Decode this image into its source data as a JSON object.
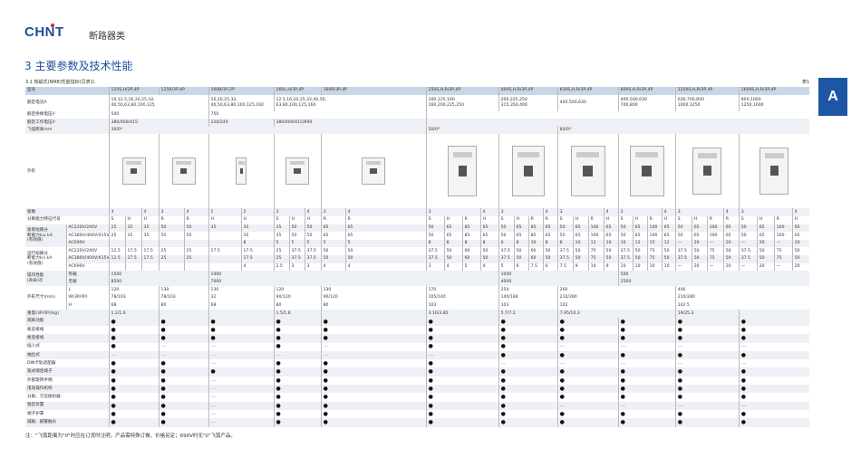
{
  "header": {
    "logo": "CHNT",
    "category": "断路器类",
    "section_title": "3 主要参数及技术性能",
    "subsection": "3.1 热磁式(NM8)性能指标(见表1)",
    "table_no": "表1",
    "side_tab": "A"
  },
  "colors": {
    "brand": "#1c4f9c",
    "header_row": "#c9d6e7",
    "stripe": "#edf0f4",
    "side_tab": "#1c56a5"
  },
  "group_spans": [
    3,
    2,
    2,
    3,
    2,
    4,
    4,
    4,
    4,
    4,
    4
  ],
  "rows": [
    {
      "bg": "b",
      "cells": [
        [
          "型号",
          2
        ],
        [
          "125S,H/3P,4P",
          3
        ],
        [
          "125R/3P,4P",
          2
        ],
        [
          "160B/1P,2P",
          2
        ],
        [
          "160L,H/3P,4P",
          3
        ],
        [
          "160R/3P,4P",
          2
        ],
        [
          "250S,H,R/3P,4P",
          4
        ],
        [
          "400S,H,R/3P,4P",
          4
        ],
        [
          "630S,H,R/3P,4P",
          4
        ],
        [
          "800S,H,R/3P,4P",
          4
        ],
        [
          "1250S,H,R/3P,4P",
          4
        ],
        [
          "1600S,H,R/3P,4P",
          4
        ]
      ]
    },
    {
      "bg": "w",
      "cls": "cur",
      "cells": [
        [
          "额定电流A",
          2
        ],
        [
          "10,12.5,16,20,25,32,\n40,50,63,80,100,125",
          5
        ],
        [
          "16,20,25,32,\n40,50,63,80,100,125,160",
          2
        ],
        [
          "12.5,16,20,25,32,40,50,\n63,80,100,125,160",
          5
        ],
        [
          "100,125,160\n160,200,225,250",
          4
        ],
        [
          "200,225,250\n315,350,400",
          4
        ],
        [
          "400,500,630",
          4
        ],
        [
          "400,500,630\n700,800",
          4
        ],
        [
          "630,700,800\n1000,1250",
          4
        ],
        [
          "800,1000\n1250,1600",
          4
        ]
      ]
    },
    {
      "bg": "w",
      "cells": [
        [
          "额定绝缘电压V",
          2
        ],
        [
          "500",
          5
        ],
        [
          "750",
          7
        ],
        [
          "",
          24
        ]
      ]
    },
    {
      "bg": "g",
      "cells": [
        [
          "额定工作电压V",
          2
        ],
        [
          "380/400/415",
          5
        ],
        [
          "220/240",
          2
        ],
        [
          "380/400/415/690",
          5
        ],
        [
          "",
          24
        ]
      ]
    },
    {
      "bg": "g",
      "cells": [
        [
          "飞弧距离mm",
          2
        ],
        [
          "30/0*",
          12
        ],
        [
          "50/0*",
          8
        ],
        [
          "80/0*",
          16
        ]
      ]
    },
    {
      "bg": "w",
      "cls": "img",
      "image_row": true,
      "cells": [
        [
          "外形",
          2
        ]
      ]
    },
    {
      "bg": "g",
      "cells": [
        [
          "极数",
          2
        ],
        [
          "3",
          2
        ],
        [
          "4"
        ],
        [
          "3"
        ],
        [
          "4"
        ],
        [
          "1"
        ],
        [
          "2"
        ],
        [
          "3",
          2
        ],
        [
          "4"
        ],
        [
          "3"
        ],
        [
          "4"
        ],
        [
          "3",
          3
        ],
        [
          "4"
        ],
        [
          "3",
          3
        ],
        [
          "4"
        ],
        [
          "3",
          3
        ],
        [
          "4"
        ],
        [
          "3",
          3
        ],
        [
          "4"
        ],
        [
          "3",
          3
        ],
        [
          "4"
        ],
        [
          "3",
          3
        ],
        [
          "4"
        ]
      ]
    },
    {
      "bg": "w",
      "cells": [
        [
          "分断能力特征代号",
          2
        ],
        [
          "S"
        ],
        [
          "H"
        ],
        [
          "H"
        ],
        [
          "R"
        ],
        [
          "R"
        ],
        [
          "H"
        ],
        [
          "H"
        ],
        [
          "S"
        ],
        [
          "H"
        ],
        [
          "H"
        ],
        [
          "R"
        ],
        [
          "R"
        ],
        [
          "S"
        ],
        [
          "H"
        ],
        [
          "R"
        ],
        [
          "H"
        ],
        [
          "S"
        ],
        [
          "H"
        ],
        [
          "R"
        ],
        [
          "R"
        ],
        [
          "S"
        ],
        [
          "H"
        ],
        [
          "R"
        ],
        [
          "H"
        ],
        [
          "S"
        ],
        [
          "H"
        ],
        [
          "R"
        ],
        [
          "H"
        ],
        [
          "S"
        ],
        [
          "H"
        ],
        [
          "R"
        ],
        [
          "R"
        ],
        [
          "S"
        ],
        [
          "H"
        ],
        [
          "R"
        ],
        [
          "H"
        ]
      ]
    },
    {
      "bg": "g",
      "cells": [
        [
          "极限短路分\n断能力Icu kA\n(有效值)",
          1,
          3
        ],
        [
          "AC220V/240V"
        ],
        [
          "25"
        ],
        [
          "35"
        ],
        [
          "35"
        ],
        [
          "50"
        ],
        [
          "50"
        ],
        [
          "35"
        ],
        [
          "35"
        ],
        [
          "35"
        ],
        [
          "50"
        ],
        [
          "50"
        ],
        [
          "65"
        ],
        [
          "65"
        ],
        [
          "50"
        ],
        [
          "65"
        ],
        [
          "85"
        ],
        [
          "65"
        ],
        [
          "50"
        ],
        [
          "65"
        ],
        [
          "85"
        ],
        [
          "65"
        ],
        [
          "50"
        ],
        [
          "65"
        ],
        [
          "100"
        ],
        [
          "65"
        ],
        [
          "50"
        ],
        [
          "65"
        ],
        [
          "100"
        ],
        [
          "65"
        ],
        [
          "50"
        ],
        [
          "65"
        ],
        [
          "100"
        ],
        [
          "65"
        ],
        [
          "50"
        ],
        [
          "65"
        ],
        [
          "100"
        ],
        [
          "65"
        ]
      ]
    },
    {
      "bg": "w",
      "cells": [
        [
          "AC380V/400V/415V"
        ],
        [
          "25"
        ],
        [
          "35"
        ],
        [
          "35"
        ],
        [
          "50"
        ],
        [
          "50"
        ],
        [
          ""
        ],
        [
          "35"
        ],
        [
          "35"
        ],
        [
          "50"
        ],
        [
          "50"
        ],
        [
          "65"
        ],
        [
          "65"
        ],
        [
          "50"
        ],
        [
          "65"
        ],
        [
          "85"
        ],
        [
          "65"
        ],
        [
          "50"
        ],
        [
          "65"
        ],
        [
          "85"
        ],
        [
          "65"
        ],
        [
          "50"
        ],
        [
          "65"
        ],
        [
          "100"
        ],
        [
          "65"
        ],
        [
          "50"
        ],
        [
          "65"
        ],
        [
          "100"
        ],
        [
          "65"
        ],
        [
          "50"
        ],
        [
          "65"
        ],
        [
          "100"
        ],
        [
          "65"
        ],
        [
          "50"
        ],
        [
          "65"
        ],
        [
          "100"
        ],
        [
          "65"
        ]
      ]
    },
    {
      "bg": "g",
      "cells": [
        [
          "AC690V"
        ],
        [
          ""
        ],
        [
          ""
        ],
        [
          ""
        ],
        [
          ""
        ],
        [
          ""
        ],
        [
          ""
        ],
        [
          "8"
        ],
        [
          "5"
        ],
        [
          "5"
        ],
        [
          "5"
        ],
        [
          "5"
        ],
        [
          "5"
        ],
        [
          "8"
        ],
        [
          "8"
        ],
        [
          "8"
        ],
        [
          "8"
        ],
        [
          "6"
        ],
        [
          "8"
        ],
        [
          "10"
        ],
        [
          "8"
        ],
        [
          "8"
        ],
        [
          "10"
        ],
        [
          "12"
        ],
        [
          "10"
        ],
        [
          "10"
        ],
        [
          "12"
        ],
        [
          "15"
        ],
        [
          "12"
        ],
        [
          "—"
        ],
        [
          "20"
        ],
        [
          "—"
        ],
        [
          "20"
        ],
        [
          "—"
        ],
        [
          "20"
        ],
        [
          "—"
        ],
        [
          "20"
        ]
      ]
    },
    {
      "bg": "w",
      "cells": [
        [
          "运行短路分\n断能力Ics kA\n(有效值)",
          1,
          3
        ],
        [
          "AC220V/240V"
        ],
        [
          "12.5"
        ],
        [
          "17.5"
        ],
        [
          "17.5"
        ],
        [
          "25"
        ],
        [
          "25"
        ],
        [
          "17.5"
        ],
        [
          "17.5"
        ],
        [
          "25"
        ],
        [
          "37.5"
        ],
        [
          "37.5"
        ],
        [
          "50"
        ],
        [
          "50"
        ],
        [
          "37.5"
        ],
        [
          "50"
        ],
        [
          "60"
        ],
        [
          "50"
        ],
        [
          "37.5"
        ],
        [
          "50"
        ],
        [
          "60"
        ],
        [
          "50"
        ],
        [
          "37.5"
        ],
        [
          "50"
        ],
        [
          "75"
        ],
        [
          "50"
        ],
        [
          "37.5"
        ],
        [
          "50"
        ],
        [
          "75"
        ],
        [
          "50"
        ],
        [
          "37.5"
        ],
        [
          "50"
        ],
        [
          "75"
        ],
        [
          "50"
        ],
        [
          "37.5"
        ],
        [
          "50"
        ],
        [
          "75"
        ],
        [
          "50"
        ]
      ]
    },
    {
      "bg": "g",
      "cells": [
        [
          "AC380V/400V/415V"
        ],
        [
          "12.5"
        ],
        [
          "17.5"
        ],
        [
          "17.5"
        ],
        [
          "25"
        ],
        [
          "25"
        ],
        [
          ""
        ],
        [
          "17.5"
        ],
        [
          "25"
        ],
        [
          "37.5"
        ],
        [
          "37.5"
        ],
        [
          "50"
        ],
        [
          "50"
        ],
        [
          "37.5"
        ],
        [
          "50"
        ],
        [
          "60"
        ],
        [
          "50"
        ],
        [
          "37.5"
        ],
        [
          "50"
        ],
        [
          "60"
        ],
        [
          "50"
        ],
        [
          "37.5"
        ],
        [
          "50"
        ],
        [
          "75"
        ],
        [
          "50"
        ],
        [
          "37.5"
        ],
        [
          "50"
        ],
        [
          "75"
        ],
        [
          "50"
        ],
        [
          "37.5"
        ],
        [
          "50"
        ],
        [
          "75"
        ],
        [
          "50"
        ],
        [
          "37.5"
        ],
        [
          "50"
        ],
        [
          "75"
        ],
        [
          "50"
        ]
      ]
    },
    {
      "bg": "w",
      "cells": [
        [
          "AC690V"
        ],
        [
          ""
        ],
        [
          ""
        ],
        [
          ""
        ],
        [
          ""
        ],
        [
          ""
        ],
        [
          ""
        ],
        [
          "4"
        ],
        [
          "2.5"
        ],
        [
          "3"
        ],
        [
          "3"
        ],
        [
          "4"
        ],
        [
          "4"
        ],
        [
          "3"
        ],
        [
          "4"
        ],
        [
          "5"
        ],
        [
          "4"
        ],
        [
          "5"
        ],
        [
          "6"
        ],
        [
          "7.5"
        ],
        [
          "6"
        ],
        [
          "7.5"
        ],
        [
          "9"
        ],
        [
          "10"
        ],
        [
          "9"
        ],
        [
          "10"
        ],
        [
          "10"
        ],
        [
          "10"
        ],
        [
          "10"
        ],
        [
          "—"
        ],
        [
          "20"
        ],
        [
          "—"
        ],
        [
          "20"
        ],
        [
          "—"
        ],
        [
          "20"
        ],
        [
          "—"
        ],
        [
          "20"
        ]
      ]
    },
    {
      "bg": "g",
      "cells": [
        [
          "操作性能\n(寿命)次",
          1,
          2
        ],
        [
          "有载"
        ],
        [
          "1500",
          5
        ],
        [
          "1000",
          11
        ],
        [
          "1000",
          8
        ],
        [
          "500",
          12
        ]
      ]
    },
    {
      "bg": "g",
      "cells": [
        [
          "无载"
        ],
        [
          "8500",
          5
        ],
        [
          "7000",
          11
        ],
        [
          "4000",
          8
        ],
        [
          "2500",
          12
        ]
      ]
    },
    {
      "bg": "w",
      "cells": [
        [
          "外形尺寸(mm)",
          1,
          3
        ],
        [
          "L"
        ],
        [
          "120",
          3
        ],
        [
          "130",
          2
        ],
        [
          "130",
          2
        ],
        [
          "120",
          3
        ],
        [
          "130",
          2
        ],
        [
          "170",
          4
        ],
        [
          "254",
          4
        ],
        [
          "260",
          8
        ],
        [
          "406",
          8
        ]
      ]
    },
    {
      "bg": "w",
      "cells": [
        [
          "W(3P/4P)"
        ],
        [
          "78/103",
          3
        ],
        [
          "78/103",
          2
        ],
        [
          "32",
          2
        ],
        [
          "90/120",
          3
        ],
        [
          "90/120",
          2
        ],
        [
          "105/140",
          4
        ],
        [
          "140/184",
          4
        ],
        [
          "210/280",
          8
        ],
        [
          "210/280",
          8
        ]
      ]
    },
    {
      "bg": "w",
      "cells": [
        [
          "H"
        ],
        [
          "68",
          3
        ],
        [
          "80",
          2
        ],
        [
          "68",
          2
        ],
        [
          "80",
          3
        ],
        [
          "80",
          2
        ],
        [
          "103",
          4
        ],
        [
          "103",
          4
        ],
        [
          "102",
          8
        ],
        [
          "142.5",
          8
        ]
      ]
    },
    {
      "bg": "g",
      "cells": [
        [
          "重量(3P/4P)(kg)",
          2
        ],
        [
          "1.2/1.6",
          3
        ],
        [
          "",
          2
        ],
        [
          "",
          2
        ],
        [
          "1.5/1.8",
          3
        ],
        [
          "",
          2
        ],
        [
          "3.10/3.85",
          4
        ],
        [
          "5.7/7.2",
          4
        ],
        [
          "7.95/10.3",
          8
        ],
        [
          "19/25.3",
          4
        ],
        [
          "",
          4
        ]
      ]
    }
  ],
  "features": [
    {
      "label": "隔离功能",
      "v": [
        "●",
        "●",
        "●",
        "●",
        "●",
        "●",
        "●",
        "●",
        "●",
        "●",
        "●"
      ]
    },
    {
      "label": "板前接线",
      "v": [
        "●",
        "●",
        "●",
        "●",
        "●",
        "●",
        "●",
        "●",
        "●",
        "●",
        "●"
      ]
    },
    {
      "label": "板后接线",
      "v": [
        "●",
        "●",
        "●",
        "●",
        "●",
        "●",
        "●",
        "●",
        "●",
        "●",
        "●"
      ]
    },
    {
      "label": "插入式",
      "v": [
        "●",
        "—",
        "—",
        "●",
        "—",
        "●",
        "●",
        "—",
        "—",
        "—",
        "—"
      ]
    },
    {
      "label": "抽出式",
      "v": [
        "—",
        "—",
        "—",
        "—",
        "—",
        "—",
        "●",
        "●",
        "●",
        "●",
        "●"
      ]
    },
    {
      "label": "DIN卡轨适配器",
      "v": [
        "●",
        "●",
        "—",
        "●",
        "●",
        "●",
        "—",
        "—",
        "—",
        "—",
        "—"
      ]
    },
    {
      "label": "笼式端连端子",
      "v": [
        "●",
        "●",
        "●",
        "●",
        "●",
        "●",
        "●",
        "●",
        "●",
        "●",
        "●"
      ]
    },
    {
      "label": "外部旋转手柄",
      "v": [
        "●",
        "●",
        "—",
        "●",
        "●",
        "●",
        "●",
        "●",
        "●",
        "●",
        "●"
      ]
    },
    {
      "label": "电动操作机构",
      "v": [
        "●",
        "●",
        "—",
        "●",
        "●",
        "●",
        "●",
        "●",
        "●",
        "●",
        "●"
      ]
    },
    {
      "label": "分励、欠压脱扣器",
      "v": [
        "●",
        "●",
        "—",
        "●",
        "●",
        "●",
        "●",
        "●",
        "●",
        "●",
        "●"
      ]
    },
    {
      "label": "锁定装置",
      "v": [
        "●",
        "●",
        "—",
        "●",
        "●",
        "●",
        "●",
        "—",
        "—",
        "—",
        "—"
      ]
    },
    {
      "label": "端子护罩",
      "v": [
        "●",
        "●",
        "—",
        "●",
        "●",
        "●",
        "●",
        "●",
        "●",
        "●",
        "●"
      ]
    },
    {
      "label": "辅助、报警触头",
      "v": [
        "●",
        "●",
        "—",
        "●",
        "●",
        "●",
        "●",
        "●",
        "●",
        "●",
        "●"
      ]
    }
  ],
  "footnote": "注：\"飞弧距离为\"0\"时应在订货时注明，产品需特殊订做，价格另定；690V时无\"0\"飞弧产品。"
}
